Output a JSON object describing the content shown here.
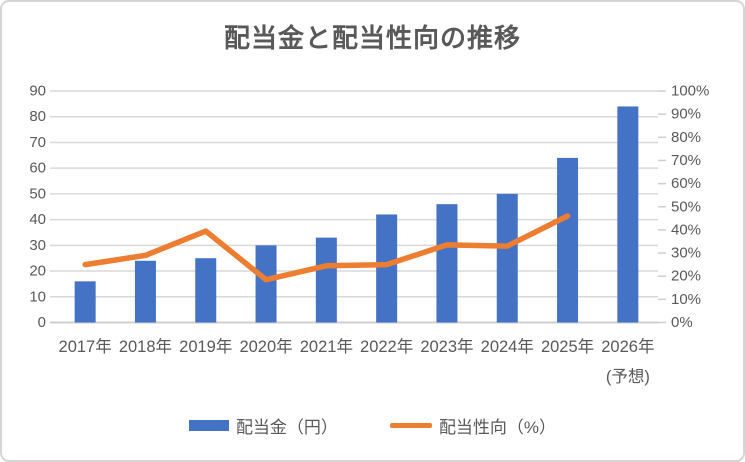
{
  "chart_data": {
    "type": "combo",
    "title": "配当金と配当性向の推移",
    "categories": [
      "2017年",
      "2018年",
      "2019年",
      "2020年",
      "2021年",
      "2022年",
      "2023年",
      "2024年",
      "2025年",
      "2026年"
    ],
    "category_note": {
      "index": 9,
      "label": "(予想)"
    },
    "series": [
      {
        "name": "配当金（円）",
        "type": "bar",
        "axis": "left",
        "color": "#4472C4",
        "values": [
          16,
          24,
          25,
          30,
          33,
          42,
          46,
          50,
          64,
          84
        ]
      },
      {
        "name": "配当性向（%）",
        "type": "line",
        "axis": "right",
        "color": "#ED7D31",
        "values": [
          25,
          29,
          39.5,
          18.5,
          24.5,
          25,
          33.5,
          33,
          46,
          null
        ]
      }
    ],
    "left_axis": {
      "min": 0,
      "max": 90,
      "step": 10,
      "tick_labels": [
        "0",
        "10",
        "20",
        "30",
        "40",
        "50",
        "60",
        "70",
        "80",
        "90"
      ]
    },
    "right_axis": {
      "min": 0,
      "max": 100,
      "step": 10,
      "tick_labels": [
        "0%",
        "10%",
        "20%",
        "30%",
        "40%",
        "50%",
        "60%",
        "70%",
        "80%",
        "90%",
        "100%"
      ]
    },
    "grid": true,
    "legend_position": "bottom"
  },
  "colors": {
    "bar": "#4472C4",
    "line": "#ED7D31",
    "gridline": "#D9D9D9",
    "axis_line": "#D0CECE",
    "text": "#595959",
    "border": "#D6D4D4",
    "background": "#FFFFFF"
  }
}
